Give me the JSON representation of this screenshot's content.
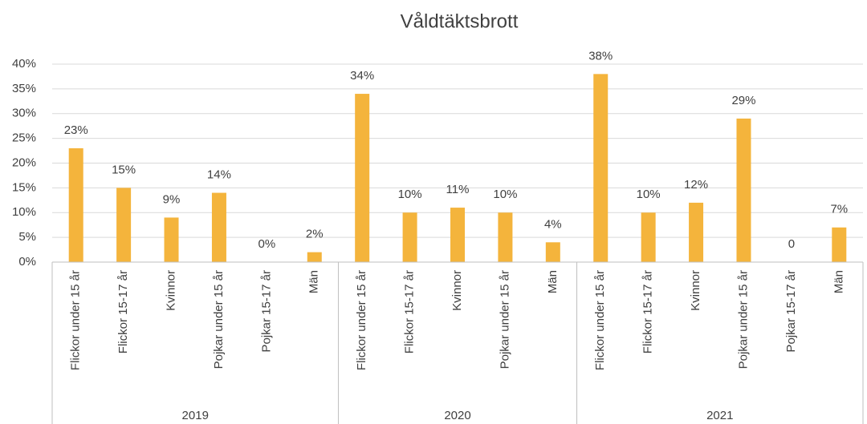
{
  "chart_data": {
    "type": "bar",
    "title": "Våldtäktsbrott",
    "color": "#f4b43c",
    "grid": true,
    "ylim": [
      0,
      40
    ],
    "yticks": [
      {
        "value": 0,
        "label": "0%"
      },
      {
        "value": 5,
        "label": "5%"
      },
      {
        "value": 10,
        "label": "10%"
      },
      {
        "value": 15,
        "label": "15%"
      },
      {
        "value": 20,
        "label": "20%"
      },
      {
        "value": 25,
        "label": "25%"
      },
      {
        "value": 30,
        "label": "30%"
      },
      {
        "value": 35,
        "label": "35%"
      },
      {
        "value": 40,
        "label": "40%"
      }
    ],
    "groups": [
      {
        "name": "2019",
        "categories": [
          "Flickor under 15 år",
          "Flickor 15-17 år",
          "Kvinnor",
          "Pojkar under 15 år",
          "Pojkar 15-17 år",
          "Män"
        ],
        "values": [
          23,
          15,
          9,
          14,
          0,
          2
        ],
        "value_labels": [
          "23%",
          "15%",
          "9%",
          "14%",
          "0%",
          "2%"
        ]
      },
      {
        "name": "2020",
        "categories": [
          "Flickor under 15 år",
          "Flickor 15-17 år",
          "Kvinnor",
          "Pojkar under 15 år",
          "Män"
        ],
        "values": [
          34,
          10,
          11,
          10,
          4
        ],
        "value_labels": [
          "34%",
          "10%",
          "11%",
          "10%",
          "4%"
        ]
      },
      {
        "name": "2021",
        "categories": [
          "Flickor under 15 år",
          "Flickor 15-17 år",
          "Kvinnor",
          "Pojkar under 15 år",
          "Pojkar 15-17 år",
          "Män"
        ],
        "values": [
          38,
          10,
          12,
          29,
          0,
          7
        ],
        "value_labels": [
          "38%",
          "10%",
          "12%",
          "29%",
          "0",
          "7%"
        ]
      }
    ]
  }
}
